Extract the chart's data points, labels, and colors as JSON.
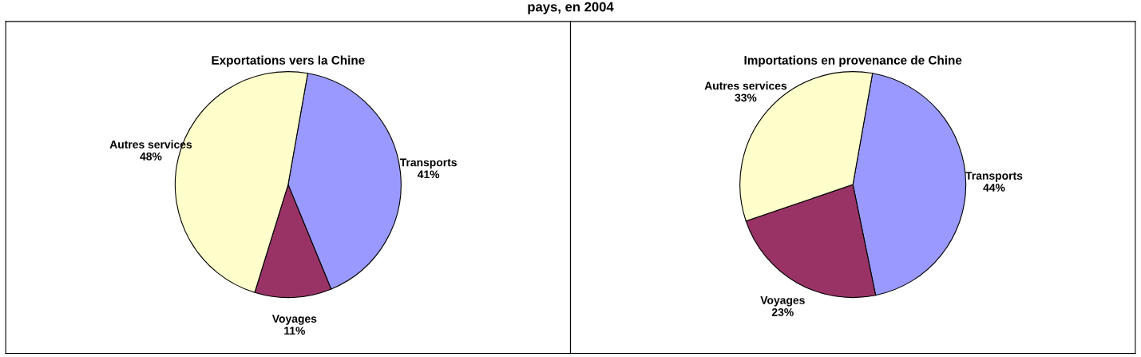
{
  "chart_data": [
    {
      "type": "pie",
      "title": "Exportations vers la Chine",
      "annotations": [
        "pays, en 2004"
      ],
      "categories": [
        "Transports",
        "Voyages",
        "Autres services"
      ],
      "values": [
        41,
        11,
        48
      ],
      "colors": [
        "#9999ff",
        "#993366",
        "#ffffcc"
      ],
      "value_labels": [
        "41%",
        "11%",
        "48%"
      ]
    },
    {
      "type": "pie",
      "title": "Importations en provenance de Chine",
      "categories": [
        "Transports",
        "Voyages",
        "Autres services"
      ],
      "values": [
        44,
        23,
        33
      ],
      "colors": [
        "#9999ff",
        "#993366",
        "#ffffcc"
      ],
      "value_labels": [
        "44%",
        "23%",
        "33%"
      ]
    }
  ]
}
